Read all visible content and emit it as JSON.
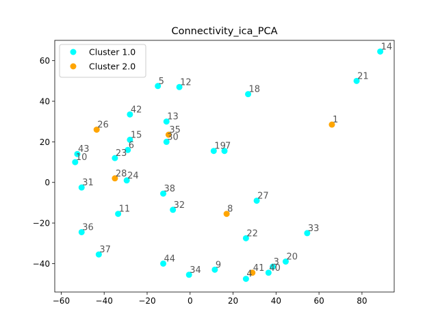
{
  "chart_data": {
    "type": "scatter",
    "title": "Connectivity_ica_PCA",
    "xlabel": "",
    "ylabel": "",
    "xlim": [
      -63,
      95
    ],
    "ylim": [
      -54,
      70
    ],
    "xticks": [
      -60,
      -40,
      -20,
      0,
      20,
      40,
      60,
      80
    ],
    "yticks": [
      -40,
      -20,
      0,
      20,
      40,
      60
    ],
    "grid": false,
    "legend": {
      "placement": "top-left"
    },
    "series": [
      {
        "name": "Cluster 1.0",
        "color": "#00ffff",
        "points": [
          {
            "label": "14",
            "x": 88.5,
            "y": 64.5
          },
          {
            "label": "21",
            "x": 77.5,
            "y": 50.0
          },
          {
            "label": "5",
            "x": -15.0,
            "y": 47.5
          },
          {
            "label": "12",
            "x": -5.0,
            "y": 47.0
          },
          {
            "label": "18",
            "x": 27.0,
            "y": 43.5
          },
          {
            "label": "42",
            "x": -28.0,
            "y": 33.5
          },
          {
            "label": "13",
            "x": -11.0,
            "y": 30.0
          },
          {
            "label": "15",
            "x": -28.0,
            "y": 21.0
          },
          {
            "label": "30",
            "x": -11.0,
            "y": 20.0
          },
          {
            "label": "6",
            "x": -29.0,
            "y": 16.0
          },
          {
            "label": "19",
            "x": 11.0,
            "y": 15.5
          },
          {
            "label": "7",
            "x": 16.0,
            "y": 15.5
          },
          {
            "label": "43",
            "x": -52.5,
            "y": 14.0
          },
          {
            "label": "23",
            "x": -35.0,
            "y": 12.0
          },
          {
            "label": "10",
            "x": -53.5,
            "y": 10.0
          },
          {
            "label": "24",
            "x": -29.5,
            "y": 1.0
          },
          {
            "label": "31",
            "x": -50.5,
            "y": -2.5
          },
          {
            "label": "38",
            "x": -12.5,
            "y": -5.5
          },
          {
            "label": "27",
            "x": 31.0,
            "y": -9.0
          },
          {
            "label": "32",
            "x": -8.0,
            "y": -13.5
          },
          {
            "label": "11",
            "x": -33.5,
            "y": -15.5
          },
          {
            "label": "33",
            "x": 54.5,
            "y": -25.0
          },
          {
            "label": "36",
            "x": -50.5,
            "y": -24.5
          },
          {
            "label": "22",
            "x": 26.0,
            "y": -27.5
          },
          {
            "label": "37",
            "x": -42.5,
            "y": -35.5
          },
          {
            "label": "44",
            "x": -12.5,
            "y": -40.0
          },
          {
            "label": "20",
            "x": 44.5,
            "y": -39.0
          },
          {
            "label": "3",
            "x": 38.5,
            "y": -41.5
          },
          {
            "label": "9",
            "x": 11.5,
            "y": -43.0
          },
          {
            "label": "40",
            "x": 36.5,
            "y": -44.5
          },
          {
            "label": "34",
            "x": -0.5,
            "y": -45.5
          },
          {
            "label": "4",
            "x": 26.0,
            "y": -47.5
          }
        ]
      },
      {
        "name": "Cluster 2.0",
        "color": "#ffa500",
        "points": [
          {
            "label": "1",
            "x": 66.0,
            "y": 28.5
          },
          {
            "label": "26",
            "x": -43.5,
            "y": 26.0
          },
          {
            "label": "35",
            "x": -10.0,
            "y": 23.5
          },
          {
            "label": "28",
            "x": -35.0,
            "y": 2.0
          },
          {
            "label": "8",
            "x": 17.0,
            "y": -15.5
          },
          {
            "label": "41",
            "x": 29.0,
            "y": -44.5
          }
        ]
      }
    ]
  }
}
